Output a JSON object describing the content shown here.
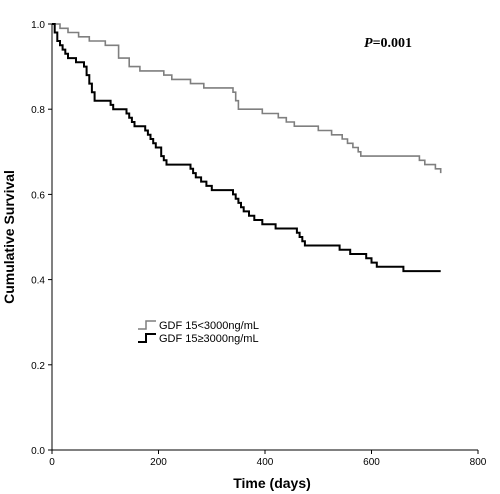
{
  "chart_data": {
    "type": "line",
    "step": true,
    "xlabel": "Time (days)",
    "ylabel": "Cumulative Survival",
    "xlim": [
      0,
      800
    ],
    "ylim": [
      0,
      1.0
    ],
    "x_ticks": [
      "0",
      "200",
      "400",
      "600",
      "800"
    ],
    "y_ticks": [
      "0.0",
      "0.2",
      "0.4",
      "0.6",
      "0.8",
      "1.0"
    ],
    "grid": false,
    "annotation": {
      "p_symbol": "P",
      "p_rest": "=0.001"
    },
    "legend_position": "center-left",
    "series": [
      {
        "name": "GDF 15<3000ng/mL",
        "color": "#7f7f7f",
        "points": [
          [
            0,
            1.0
          ],
          [
            15,
            0.99
          ],
          [
            30,
            0.98
          ],
          [
            50,
            0.97
          ],
          [
            70,
            0.96
          ],
          [
            100,
            0.95
          ],
          [
            125,
            0.92
          ],
          [
            145,
            0.9
          ],
          [
            165,
            0.89
          ],
          [
            210,
            0.88
          ],
          [
            225,
            0.87
          ],
          [
            260,
            0.86
          ],
          [
            285,
            0.85
          ],
          [
            340,
            0.84
          ],
          [
            345,
            0.82
          ],
          [
            350,
            0.8
          ],
          [
            395,
            0.79
          ],
          [
            425,
            0.78
          ],
          [
            440,
            0.77
          ],
          [
            455,
            0.76
          ],
          [
            500,
            0.75
          ],
          [
            525,
            0.74
          ],
          [
            545,
            0.73
          ],
          [
            555,
            0.72
          ],
          [
            565,
            0.71
          ],
          [
            575,
            0.7
          ],
          [
            580,
            0.69
          ],
          [
            690,
            0.68
          ],
          [
            700,
            0.67
          ],
          [
            720,
            0.66
          ],
          [
            730,
            0.65
          ]
        ]
      },
      {
        "name": "GDF 15≥3000ng/mL",
        "color": "#000000",
        "points": [
          [
            0,
            1.0
          ],
          [
            5,
            0.98
          ],
          [
            10,
            0.96
          ],
          [
            15,
            0.95
          ],
          [
            20,
            0.94
          ],
          [
            25,
            0.93
          ],
          [
            30,
            0.92
          ],
          [
            45,
            0.91
          ],
          [
            60,
            0.9
          ],
          [
            65,
            0.88
          ],
          [
            70,
            0.86
          ],
          [
            75,
            0.84
          ],
          [
            80,
            0.82
          ],
          [
            110,
            0.81
          ],
          [
            115,
            0.8
          ],
          [
            140,
            0.79
          ],
          [
            145,
            0.78
          ],
          [
            150,
            0.77
          ],
          [
            155,
            0.76
          ],
          [
            175,
            0.75
          ],
          [
            180,
            0.74
          ],
          [
            185,
            0.73
          ],
          [
            190,
            0.72
          ],
          [
            195,
            0.71
          ],
          [
            205,
            0.69
          ],
          [
            210,
            0.68
          ],
          [
            215,
            0.67
          ],
          [
            260,
            0.66
          ],
          [
            265,
            0.65
          ],
          [
            270,
            0.64
          ],
          [
            280,
            0.63
          ],
          [
            290,
            0.62
          ],
          [
            300,
            0.61
          ],
          [
            340,
            0.6
          ],
          [
            345,
            0.59
          ],
          [
            350,
            0.58
          ],
          [
            355,
            0.57
          ],
          [
            360,
            0.56
          ],
          [
            370,
            0.55
          ],
          [
            380,
            0.54
          ],
          [
            395,
            0.53
          ],
          [
            420,
            0.52
          ],
          [
            460,
            0.51
          ],
          [
            465,
            0.5
          ],
          [
            470,
            0.49
          ],
          [
            475,
            0.48
          ],
          [
            540,
            0.47
          ],
          [
            560,
            0.46
          ],
          [
            590,
            0.45
          ],
          [
            600,
            0.44
          ],
          [
            610,
            0.43
          ],
          [
            660,
            0.42
          ],
          [
            730,
            0.42
          ]
        ]
      }
    ]
  }
}
